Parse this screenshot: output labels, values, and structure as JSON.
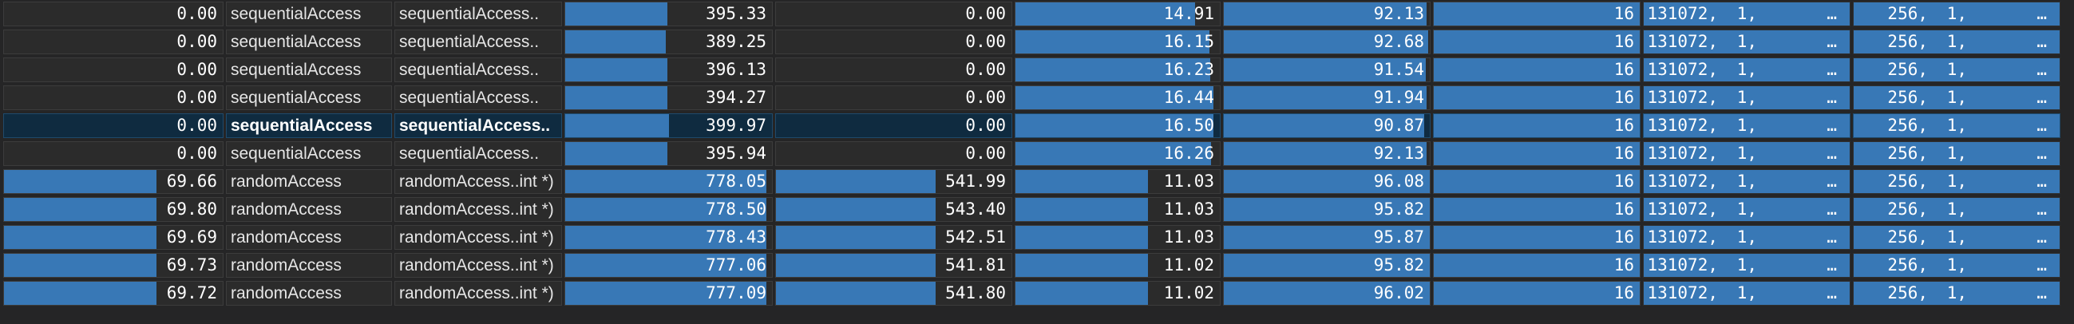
{
  "columns": [
    {
      "key": "c0",
      "kind": "num",
      "max": 100
    },
    {
      "key": "name",
      "kind": "text"
    },
    {
      "key": "sig",
      "kind": "text"
    },
    {
      "key": "c3",
      "kind": "num",
      "max": 800
    },
    {
      "key": "c4",
      "kind": "num",
      "max": 800
    },
    {
      "key": "c5",
      "kind": "num",
      "max": 17
    },
    {
      "key": "c6",
      "kind": "num",
      "max": 93.5
    },
    {
      "key": "c7",
      "kind": "num",
      "max": 16
    },
    {
      "key": "grid",
      "kind": "dims"
    },
    {
      "key": "block",
      "kind": "dims"
    }
  ],
  "rows": [
    {
      "c0": "0.00",
      "name": "sequentialAccess",
      "sig": "sequentialAccess..",
      "c3": "395.33",
      "c4": "0.00",
      "c5": "14.91",
      "c6": "92.13",
      "c7": "16",
      "grid": [
        "131072,",
        "1,",
        "…"
      ],
      "block": [
        "256,",
        "1,",
        "…"
      ],
      "selected": false
    },
    {
      "c0": "0.00",
      "name": "sequentialAccess",
      "sig": "sequentialAccess..",
      "c3": "389.25",
      "c4": "0.00",
      "c5": "16.15",
      "c6": "92.68",
      "c7": "16",
      "grid": [
        "131072,",
        "1,",
        "…"
      ],
      "block": [
        "256,",
        "1,",
        "…"
      ],
      "selected": false
    },
    {
      "c0": "0.00",
      "name": "sequentialAccess",
      "sig": "sequentialAccess..",
      "c3": "396.13",
      "c4": "0.00",
      "c5": "16.23",
      "c6": "91.54",
      "c7": "16",
      "grid": [
        "131072,",
        "1,",
        "…"
      ],
      "block": [
        "256,",
        "1,",
        "…"
      ],
      "selected": false
    },
    {
      "c0": "0.00",
      "name": "sequentialAccess",
      "sig": "sequentialAccess..",
      "c3": "394.27",
      "c4": "0.00",
      "c5": "16.44",
      "c6": "91.94",
      "c7": "16",
      "grid": [
        "131072,",
        "1,",
        "…"
      ],
      "block": [
        "256,",
        "1,",
        "…"
      ],
      "selected": false
    },
    {
      "c0": "0.00",
      "name": "sequentialAccess",
      "sig": "sequentialAccess..",
      "c3": "399.97",
      "c4": "0.00",
      "c5": "16.50",
      "c6": "90.87",
      "c7": "16",
      "grid": [
        "131072,",
        "1,",
        "…"
      ],
      "block": [
        "256,",
        "1,",
        "…"
      ],
      "selected": true
    },
    {
      "c0": "0.00",
      "name": "sequentialAccess",
      "sig": "sequentialAccess..",
      "c3": "395.94",
      "c4": "0.00",
      "c5": "16.26",
      "c6": "92.13",
      "c7": "16",
      "grid": [
        "131072,",
        "1,",
        "…"
      ],
      "block": [
        "256,",
        "1,",
        "…"
      ],
      "selected": false
    },
    {
      "c0": "69.66",
      "name": "randomAccess",
      "sig": "randomAccess..int *)",
      "c3": "778.05",
      "c4": "541.99",
      "c5": "11.03",
      "c6": "96.08",
      "c7": "16",
      "grid": [
        "131072,",
        "1,",
        "…"
      ],
      "block": [
        "256,",
        "1,",
        "…"
      ],
      "selected": false
    },
    {
      "c0": "69.80",
      "name": "randomAccess",
      "sig": "randomAccess..int *)",
      "c3": "778.50",
      "c4": "543.40",
      "c5": "11.03",
      "c6": "95.82",
      "c7": "16",
      "grid": [
        "131072,",
        "1,",
        "…"
      ],
      "block": [
        "256,",
        "1,",
        "…"
      ],
      "selected": false
    },
    {
      "c0": "69.69",
      "name": "randomAccess",
      "sig": "randomAccess..int *)",
      "c3": "778.43",
      "c4": "542.51",
      "c5": "11.03",
      "c6": "95.87",
      "c7": "16",
      "grid": [
        "131072,",
        "1,",
        "…"
      ],
      "block": [
        "256,",
        "1,",
        "…"
      ],
      "selected": false
    },
    {
      "c0": "69.73",
      "name": "randomAccess",
      "sig": "randomAccess..int *)",
      "c3": "777.06",
      "c4": "541.81",
      "c5": "11.02",
      "c6": "95.82",
      "c7": "16",
      "grid": [
        "131072,",
        "1,",
        "…"
      ],
      "block": [
        "256,",
        "1,",
        "…"
      ],
      "selected": false
    },
    {
      "c0": "69.72",
      "name": "randomAccess",
      "sig": "randomAccess..int *)",
      "c3": "777.09",
      "c4": "541.80",
      "c5": "11.02",
      "c6": "96.02",
      "c7": "16",
      "grid": [
        "131072,",
        "1,",
        "…"
      ],
      "block": [
        "256,",
        "1,",
        "…"
      ],
      "selected": false
    }
  ],
  "colors": {
    "bar": "#3878b6",
    "cell_bg": "#2b2b2b",
    "selected_bg": "#0f2b40",
    "window_bg": "#252526"
  }
}
